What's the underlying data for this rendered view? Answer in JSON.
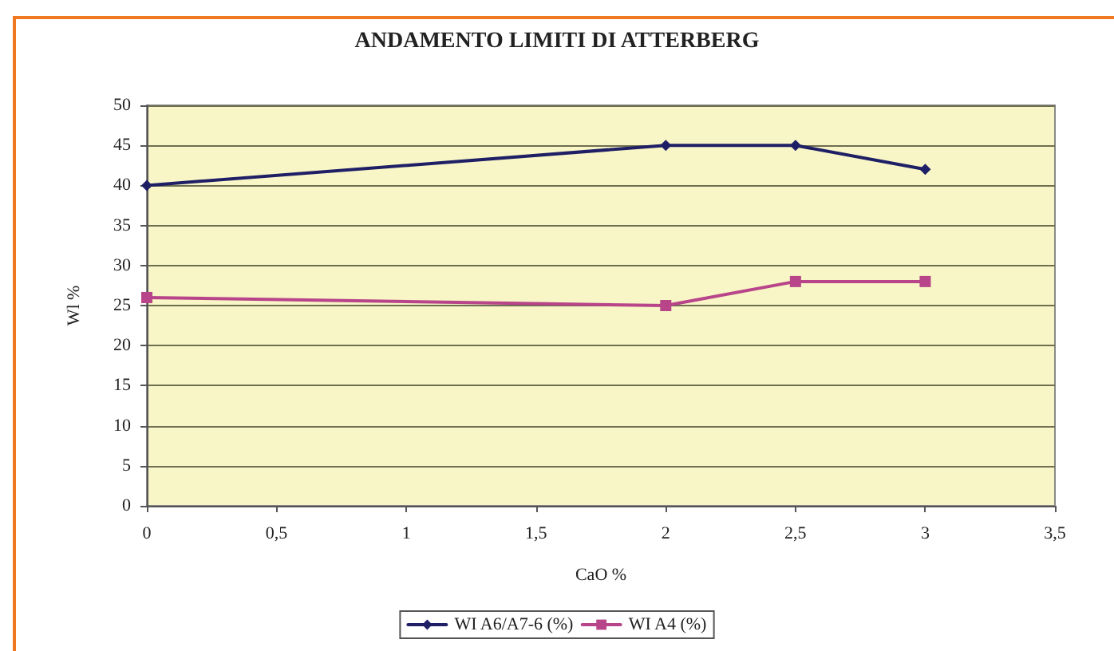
{
  "chart_data": {
    "type": "line",
    "title": "ANDAMENTO LIMITI DI ATTERBERG",
    "xlabel": "CaO %",
    "ylabel": "Wl %",
    "x": [
      0,
      2,
      2.5,
      3
    ],
    "series": [
      {
        "name": "WI A6/A7-6 (%)",
        "color": "#1f1f66",
        "marker": "diamond",
        "values": [
          40,
          45,
          45,
          42
        ]
      },
      {
        "name": "WI A4 (%)",
        "color": "#b8448a",
        "marker": "square",
        "values": [
          26,
          25,
          28,
          28
        ]
      }
    ],
    "xlim": [
      0,
      3.5
    ],
    "xticks": [
      0,
      {
        "value": 0.5,
        "label": "0,5"
      },
      1,
      {
        "value": 1.5,
        "label": "1,5"
      },
      2,
      {
        "value": 2.5,
        "label": "2,5"
      },
      3,
      {
        "value": 3.5,
        "label": "3,5"
      }
    ],
    "ylim": [
      0,
      50
    ],
    "yticks": [
      0,
      5,
      10,
      15,
      20,
      25,
      30,
      35,
      40,
      45,
      50
    ],
    "grid": "y",
    "legend": "bottom",
    "line_style": "solid"
  }
}
